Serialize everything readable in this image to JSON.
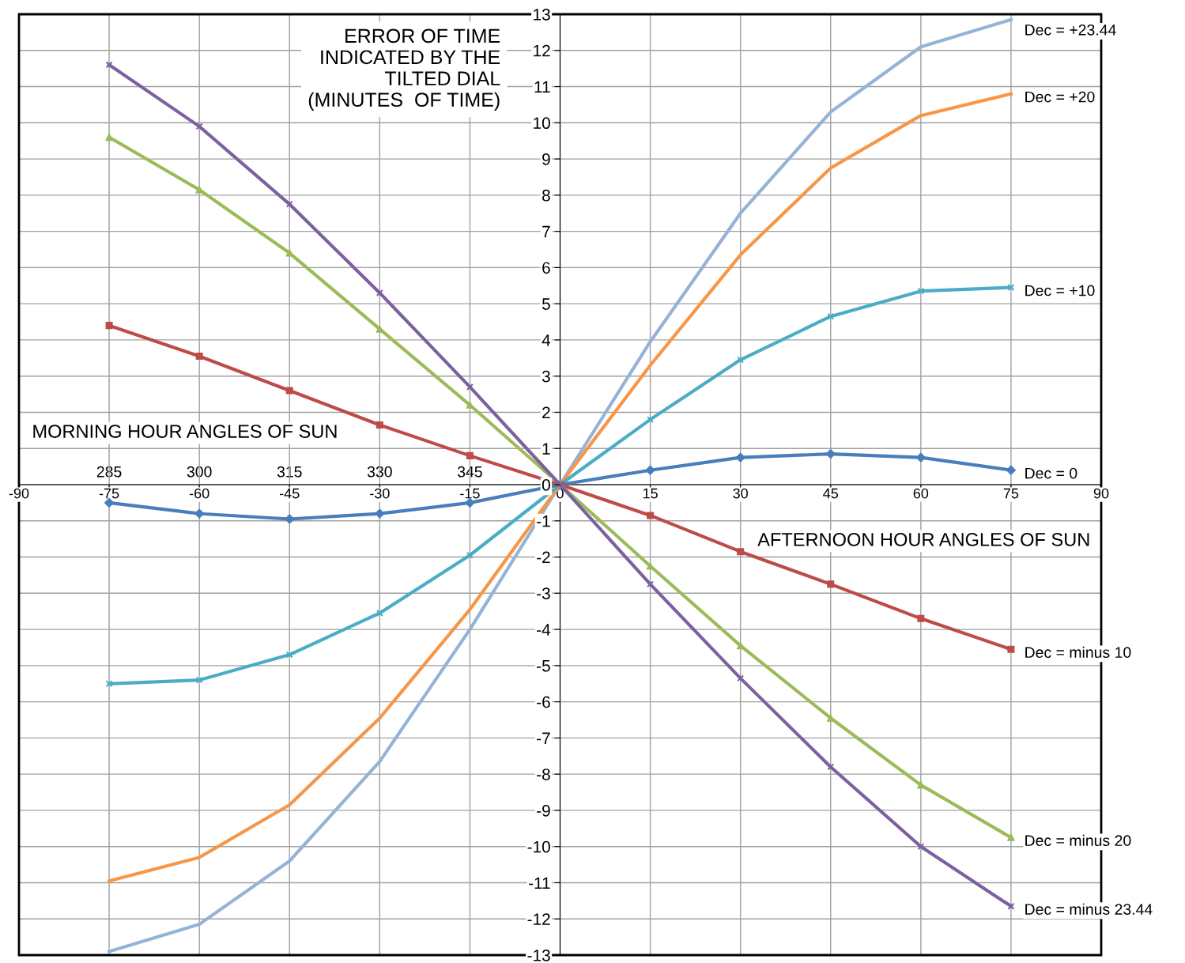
{
  "chart_data": {
    "type": "line",
    "xlabel": "AFTERNOON HOUR ANGLES OF SUN",
    "x2label": "MORNING HOUR ANGLES OF SUN",
    "ylabel": "ERROR OF TIME\nINDICATED BY THE\nTILTED DIAL\n(MINUTES  OF TIME)",
    "x": [
      -75,
      -60,
      -45,
      -30,
      -15,
      0,
      15,
      30,
      45,
      60,
      75
    ],
    "series": [
      {
        "name": "Dec = +23.44",
        "color": "#95b3d7",
        "marker": "none",
        "values": [
          -12.9,
          -12.15,
          -10.4,
          -7.65,
          -4.0,
          0,
          3.95,
          7.5,
          10.3,
          12.1,
          12.85
        ]
      },
      {
        "name": "Dec = +20",
        "color": "#f79646",
        "marker": "none",
        "values": [
          -10.95,
          -10.3,
          -8.85,
          -6.45,
          -3.45,
          0,
          3.3,
          6.35,
          8.75,
          10.2,
          10.8
        ]
      },
      {
        "name": "Dec = +10",
        "color": "#4bacc6",
        "marker": "cross",
        "values": [
          -5.5,
          -5.4,
          -4.7,
          -3.55,
          -1.95,
          0,
          1.8,
          3.45,
          4.65,
          5.35,
          5.45
        ]
      },
      {
        "name": "Dec = 0",
        "color": "#4a7ebb",
        "marker": "diamond",
        "values": [
          -0.5,
          -0.8,
          -0.95,
          -0.8,
          -0.5,
          0,
          0.4,
          0.75,
          0.85,
          0.75,
          0.4
        ]
      },
      {
        "name": "Dec = minus 10",
        "color": "#be4b48",
        "marker": "square",
        "values": [
          4.4,
          3.55,
          2.6,
          1.65,
          0.8,
          0,
          -0.85,
          -1.85,
          -2.75,
          -3.7,
          -4.55
        ]
      },
      {
        "name": "Dec = minus 20",
        "color": "#9bbb59",
        "marker": "triangle",
        "values": [
          9.6,
          8.15,
          6.4,
          4.3,
          2.2,
          0,
          -2.25,
          -4.45,
          -6.45,
          -8.3,
          -9.75
        ]
      },
      {
        "name": "Dec = minus 23.44",
        "color": "#7d60a0",
        "marker": "cross",
        "values": [
          11.6,
          9.9,
          7.75,
          5.3,
          2.7,
          0,
          -2.75,
          -5.35,
          -7.8,
          -10.0,
          -11.65
        ]
      }
    ],
    "xlim": [
      -90,
      90
    ],
    "xticks": [
      -90,
      -75,
      -60,
      -45,
      -30,
      -15,
      0,
      15,
      30,
      45,
      60,
      75,
      90
    ],
    "x2lim": [
      270,
      450
    ],
    "x2ticks": [
      285,
      300,
      315,
      330,
      345
    ],
    "ylim": [
      -13,
      13
    ],
    "yticks": [
      -13,
      -12,
      -11,
      -10,
      -9,
      -8,
      -7,
      -6,
      -5,
      -4,
      -3,
      -2,
      -1,
      0,
      1,
      2,
      3,
      4,
      5,
      6,
      7,
      8,
      9,
      10,
      11,
      12,
      13
    ],
    "grid": true,
    "legend": false,
    "line_style": "solid"
  }
}
